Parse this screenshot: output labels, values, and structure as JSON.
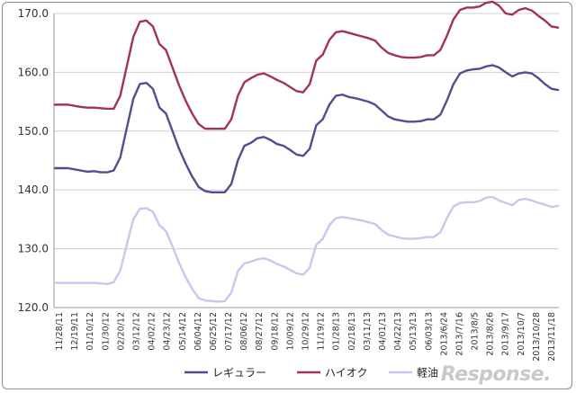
{
  "watermark": "Response.",
  "chart_data": {
    "type": "line",
    "ylim": [
      120,
      170
    ],
    "yticks": [
      "120.0",
      "130.0",
      "140.0",
      "150.0",
      "160.0",
      "170.0"
    ],
    "grid": true,
    "legend_position": "bottom",
    "tick_labels": [
      "11/28/11",
      "12/19/11",
      "01/10/12",
      "01/30/12",
      "02/20/12",
      "03/12/12",
      "04/02/12",
      "04/23/12",
      "05/14/12",
      "06/04/12",
      "06/25/12",
      "07/17/12",
      "08/06/12",
      "08/27/12",
      "09/18/12",
      "10/09/12",
      "10/29/12",
      "11/19/12",
      "01/28/13",
      "02/18/13",
      "03/11/13",
      "04/01/13",
      "04/22/13",
      "05/13/13",
      "06/03/13",
      "2013/6/24",
      "2013/7/16",
      "2013/8/5",
      "2013/8/26",
      "2013/9/17",
      "2013/10/7",
      "2013/10/28",
      "2013/11/18"
    ],
    "series": [
      {
        "name": "レギュラー",
        "color": "#4f4f8f",
        "values": [
          143.7,
          143.7,
          143.7,
          143.5,
          143.3,
          143.1,
          143.2,
          143.0,
          143.0,
          143.3,
          145.5,
          150.5,
          155.5,
          158.0,
          158.2,
          157.2,
          154.0,
          153.0,
          150.0,
          147.0,
          144.5,
          142.3,
          140.5,
          139.8,
          139.6,
          139.6,
          139.6,
          141.0,
          145.0,
          147.5,
          148.0,
          148.8,
          149.0,
          148.5,
          147.8,
          147.5,
          146.8,
          146.0,
          145.8,
          147.0,
          151.0,
          152.0,
          154.5,
          156.0,
          156.2,
          155.8,
          155.6,
          155.3,
          155.0,
          154.5,
          153.5,
          152.5,
          152.0,
          151.8,
          151.6,
          151.6,
          151.7,
          152.0,
          152.0,
          152.8,
          155.2,
          158.0,
          159.8,
          160.3,
          160.5,
          160.6,
          161.0,
          161.2,
          160.8,
          160.0,
          159.3,
          159.8,
          160.0,
          159.8,
          159.0,
          158.0,
          157.2,
          157.0
        ]
      },
      {
        "name": "ハイオク",
        "color": "#a3305e",
        "values": [
          154.5,
          154.5,
          154.5,
          154.3,
          154.1,
          154.0,
          154.0,
          153.9,
          153.8,
          153.8,
          156.0,
          161.0,
          166.0,
          168.6,
          168.8,
          167.8,
          164.8,
          163.8,
          160.8,
          157.8,
          155.2,
          153.0,
          151.2,
          150.4,
          150.4,
          150.4,
          150.4,
          152.0,
          156.0,
          158.3,
          159.0,
          159.6,
          159.8,
          159.3,
          158.7,
          158.2,
          157.5,
          156.8,
          156.6,
          158.0,
          162.0,
          163.0,
          165.5,
          166.8,
          167.0,
          166.7,
          166.4,
          166.1,
          165.8,
          165.4,
          164.2,
          163.3,
          162.9,
          162.6,
          162.5,
          162.5,
          162.6,
          162.9,
          162.9,
          163.8,
          166.2,
          169.0,
          170.6,
          171.0,
          171.0,
          171.2,
          171.8,
          172.0,
          171.3,
          170.0,
          169.8,
          170.6,
          170.9,
          170.5,
          169.6,
          168.8,
          167.8,
          167.6
        ]
      },
      {
        "name": "軽油",
        "color": "#c7c7f0",
        "values": [
          124.2,
          124.2,
          124.2,
          124.2,
          124.2,
          124.2,
          124.2,
          124.1,
          124.0,
          124.3,
          126.3,
          130.7,
          135.0,
          136.8,
          136.9,
          136.3,
          134.0,
          133.0,
          130.4,
          127.6,
          125.2,
          123.2,
          121.6,
          121.2,
          121.1,
          121.0,
          121.1,
          122.5,
          126.2,
          127.5,
          127.8,
          128.2,
          128.4,
          128.0,
          127.4,
          127.0,
          126.4,
          125.8,
          125.6,
          126.8,
          130.7,
          131.7,
          134.0,
          135.2,
          135.4,
          135.2,
          135.0,
          134.8,
          134.5,
          134.2,
          133.2,
          132.4,
          132.1,
          131.8,
          131.7,
          131.7,
          131.8,
          132.0,
          132.0,
          132.8,
          135.2,
          137.2,
          137.8,
          137.9,
          137.9,
          138.1,
          138.7,
          138.8,
          138.2,
          137.8,
          137.4,
          138.3,
          138.5,
          138.2,
          137.8,
          137.5,
          137.1,
          137.3
        ]
      }
    ]
  }
}
